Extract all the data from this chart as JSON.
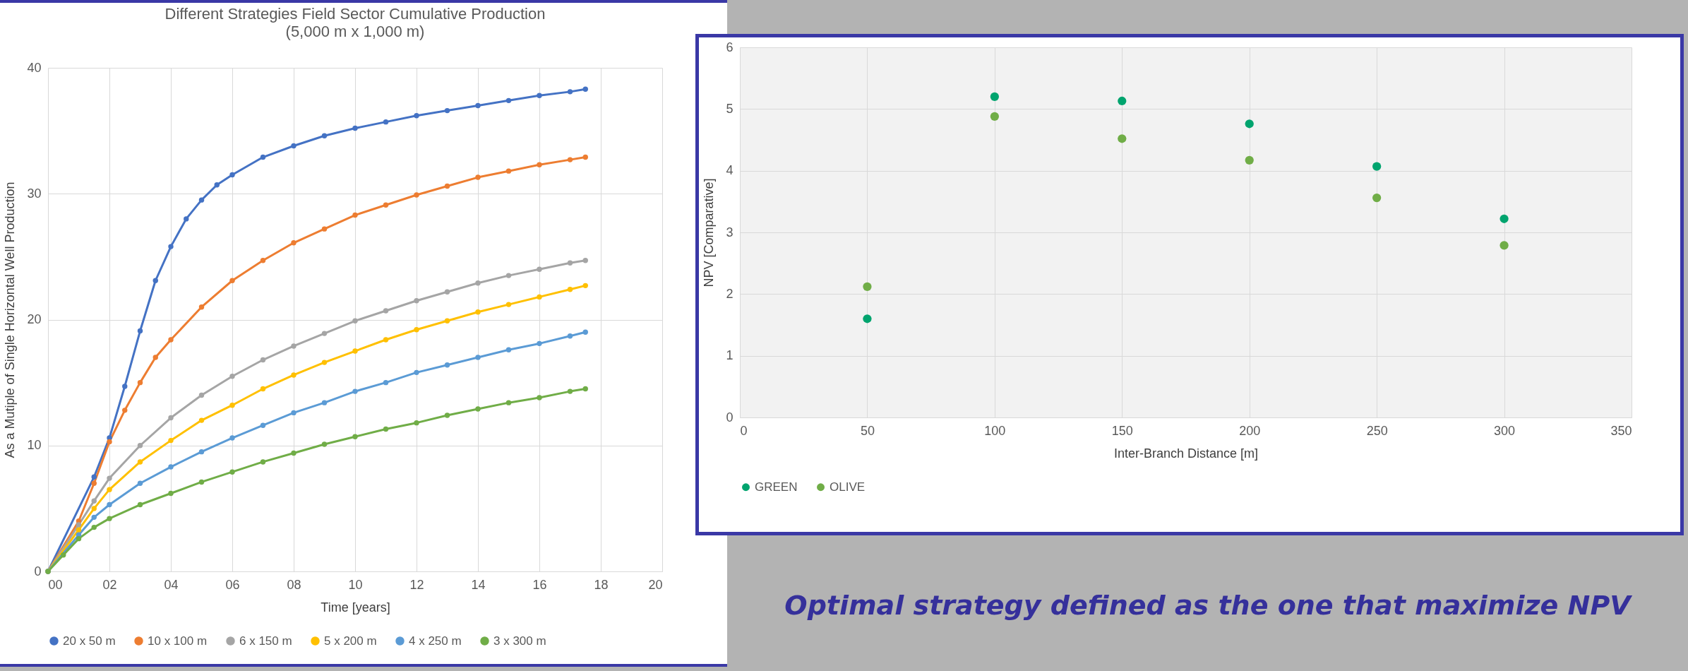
{
  "chart_data": [
    {
      "type": "line",
      "title": "Different Strategies Field Sector Cumulative Production",
      "subtitle": "(5,000 m x 1,000 m)",
      "xlabel": "Time [years]",
      "ylabel": "As a Mutiple of Single Horizontal Well Production",
      "xlim": [
        0,
        20
      ],
      "xticks": [
        {
          "value": 0,
          "label": "00"
        },
        {
          "value": 2,
          "label": "02"
        },
        {
          "value": 4,
          "label": "04"
        },
        {
          "value": 6,
          "label": "06"
        },
        {
          "value": 8,
          "label": "08"
        },
        10,
        12,
        14,
        16,
        18,
        20
      ],
      "ylim": [
        0,
        40
      ],
      "yticks": [
        0,
        10,
        20,
        30,
        40
      ],
      "grid": true,
      "legend": "bottom",
      "marker": "circle",
      "line_style": "solid",
      "series": [
        {
          "name": "20 x 50 m",
          "color": "#4472c4",
          "x": [
            0,
            1.5,
            2,
            2.5,
            3,
            3.5,
            4,
            4.5,
            5,
            5.5,
            6,
            7,
            8,
            9,
            10,
            11,
            12,
            13,
            14,
            15,
            16,
            17,
            17.5
          ],
          "values": [
            0,
            7.5,
            10.6,
            14.7,
            19.1,
            23.1,
            25.8,
            28,
            29.5,
            30.7,
            31.5,
            32.9,
            33.8,
            34.6,
            35.2,
            35.7,
            36.2,
            36.6,
            37,
            37.4,
            37.8,
            38.1,
            38.3
          ]
        },
        {
          "name": "10 x 100 m",
          "color": "#ed7d31",
          "x": [
            0,
            1,
            1.5,
            2,
            2.5,
            3,
            3.5,
            4,
            5,
            6,
            7,
            8,
            9,
            10,
            11,
            12,
            13,
            14,
            15,
            16,
            17,
            17.5
          ],
          "values": [
            0,
            4,
            7,
            10.3,
            12.8,
            15,
            17,
            18.4,
            21,
            23.1,
            24.7,
            26.1,
            27.2,
            28.3,
            29.1,
            29.9,
            30.6,
            31.3,
            31.8,
            32.3,
            32.7,
            32.9
          ]
        },
        {
          "name": "6 x 150 m",
          "color": "#a5a5a5",
          "x": [
            0,
            1,
            1.5,
            2,
            3,
            4,
            5,
            6,
            7,
            8,
            9,
            10,
            11,
            12,
            13,
            14,
            15,
            16,
            17,
            17.5
          ],
          "values": [
            0,
            3.7,
            5.6,
            7.4,
            10,
            12.2,
            14,
            15.5,
            16.8,
            17.9,
            18.9,
            19.9,
            20.7,
            21.5,
            22.2,
            22.9,
            23.5,
            24,
            24.5,
            24.7
          ]
        },
        {
          "name": "5 x 200 m",
          "color": "#ffc000",
          "x": [
            0,
            1,
            1.5,
            2,
            3,
            4,
            5,
            6,
            7,
            8,
            9,
            10,
            11,
            12,
            13,
            14,
            15,
            16,
            17,
            17.5
          ],
          "values": [
            0,
            3.3,
            5,
            6.5,
            8.7,
            10.4,
            12,
            13.2,
            14.5,
            15.6,
            16.6,
            17.5,
            18.4,
            19.2,
            19.9,
            20.6,
            21.2,
            21.8,
            22.4,
            22.7
          ]
        },
        {
          "name": "4 x 250 m",
          "color": "#5b9bd5",
          "x": [
            0,
            1,
            1.5,
            2,
            3,
            4,
            5,
            6,
            7,
            8,
            9,
            10,
            11,
            12,
            13,
            14,
            15,
            16,
            17,
            17.5
          ],
          "values": [
            0,
            2.9,
            4.3,
            5.3,
            7,
            8.3,
            9.5,
            10.6,
            11.6,
            12.6,
            13.4,
            14.3,
            15,
            15.8,
            16.4,
            17,
            17.6,
            18.1,
            18.7,
            19
          ]
        },
        {
          "name": "3 x 300 m",
          "color": "#70ad47",
          "x": [
            0,
            0.5,
            1,
            1.5,
            2,
            3,
            4,
            5,
            6,
            7,
            8,
            9,
            10,
            11,
            12,
            13,
            14,
            15,
            16,
            17,
            17.5
          ],
          "values": [
            0,
            1.3,
            2.6,
            3.5,
            4.2,
            5.3,
            6.2,
            7.1,
            7.9,
            8.7,
            9.4,
            10.1,
            10.7,
            11.3,
            11.8,
            12.4,
            12.9,
            13.4,
            13.8,
            14.3,
            14.5
          ]
        }
      ]
    },
    {
      "type": "scatter",
      "xlabel": "Inter-Branch Distance [m]",
      "ylabel": "NPV [Comparative]",
      "xlim": [
        0,
        350
      ],
      "xticks": [
        0,
        50,
        100,
        150,
        200,
        250,
        300,
        350
      ],
      "ylim": [
        0,
        6
      ],
      "yticks": [
        0,
        1,
        2,
        3,
        4,
        5,
        6
      ],
      "grid": true,
      "legend": "bottom",
      "marker": "circle",
      "x": [
        50,
        100,
        150,
        200,
        250,
        300
      ],
      "annotations": [
        "Optimal strategy defined as the one that maximize NPV"
      ],
      "series": [
        {
          "name": "GREEN",
          "color": "#00a46e",
          "values": [
            1.6,
            5.2,
            5.13,
            4.76,
            4.07,
            3.22
          ]
        },
        {
          "name": "OLIVE",
          "color": "#70ad47",
          "values": [
            2.12,
            4.88,
            4.52,
            4.17,
            3.56,
            2.79
          ]
        }
      ]
    }
  ]
}
